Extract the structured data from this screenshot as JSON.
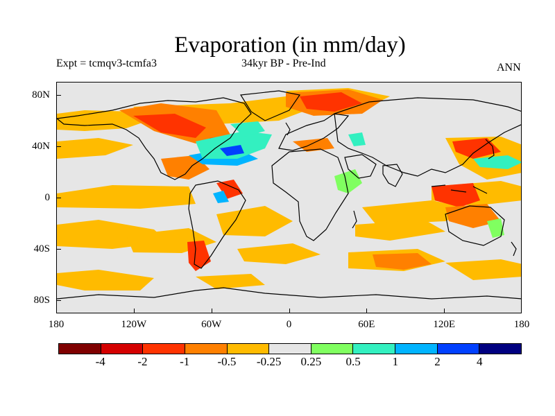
{
  "header": {
    "title": "Evaporation (in mm/day)",
    "left_label": "Expt = tcmqv3-tcmfa3",
    "center_label": "34kyr BP - Pre-Ind",
    "right_label": "ANN"
  },
  "map": {
    "lon_range": [
      -180,
      180
    ],
    "lat_range": [
      -90,
      90
    ],
    "background_color": "#e6e6e6",
    "y_ticks": [
      {
        "label": "80N",
        "lat": 80
      },
      {
        "label": "40N",
        "lat": 40
      },
      {
        "label": "0",
        "lat": 0
      },
      {
        "label": "40S",
        "lat": -40
      },
      {
        "label": "80S",
        "lat": -80
      }
    ],
    "x_ticks": [
      {
        "label": "180",
        "lon": -180
      },
      {
        "label": "120W",
        "lon": -120
      },
      {
        "label": "60W",
        "lon": -60
      },
      {
        "label": "0",
        "lon": 0
      },
      {
        "label": "60E",
        "lon": 60
      },
      {
        "label": "120E",
        "lon": 120
      },
      {
        "label": "180",
        "lon": 180
      }
    ]
  },
  "colorbar": {
    "colors": [
      "#7f0000",
      "#d40000",
      "#ff3300",
      "#ff8000",
      "#ffbb00",
      "#e6e6e6",
      "#80ff60",
      "#33f0c0",
      "#00b4ff",
      "#0040ff",
      "#000080"
    ],
    "labels": [
      "-4",
      "-2",
      "-1",
      "-0.5",
      "-0.25",
      "0.25",
      "0.5",
      "1",
      "2",
      "4"
    ]
  }
}
